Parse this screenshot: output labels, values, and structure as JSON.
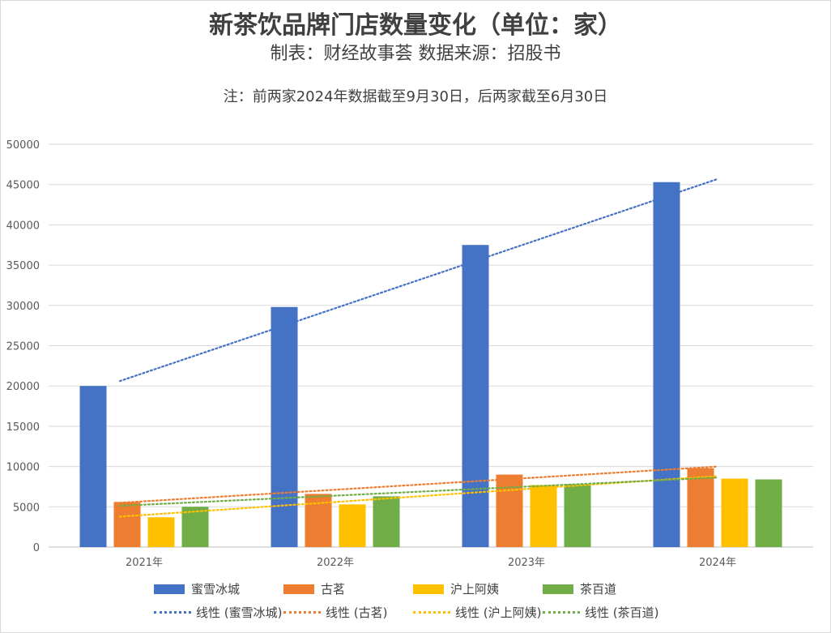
{
  "title": "新茶饮品牌门店数量变化（单位：家）",
  "subtitle": "制表：财经故事荟 数据来源：招股书",
  "note": "注：前两家2024年数据截至9月30日，后两家截至6月30日",
  "chart_data": {
    "type": "bar",
    "categories": [
      "2021年",
      "2022年",
      "2023年",
      "2024年"
    ],
    "ylim": [
      0,
      50000
    ],
    "yticks": [
      0,
      5000,
      10000,
      15000,
      20000,
      25000,
      30000,
      35000,
      40000,
      45000,
      50000
    ],
    "grid": true,
    "legend_position": "bottom",
    "series": [
      {
        "name": "蜜雪冰城",
        "color": "#4472C4",
        "values": [
          20000,
          29800,
          37500,
          45300
        ]
      },
      {
        "name": "古茗",
        "color": "#ED7D31",
        "values": [
          5600,
          6600,
          9000,
          9800
        ]
      },
      {
        "name": "沪上阿姨",
        "color": "#FFC000",
        "values": [
          3700,
          5300,
          7700,
          8500
        ]
      },
      {
        "name": "茶百道",
        "color": "#70AD47",
        "values": [
          5000,
          6300,
          7800,
          8400
        ]
      }
    ],
    "trendlines": [
      {
        "name": "线性 (蜜雪冰城)",
        "color": "#4472C4"
      },
      {
        "name": "线性 (古茗)",
        "color": "#ED7D31"
      },
      {
        "name": "线性 (沪上阿姨)",
        "color": "#FFC000"
      },
      {
        "name": "线性 (茶百道)",
        "color": "#70AD47"
      }
    ]
  }
}
